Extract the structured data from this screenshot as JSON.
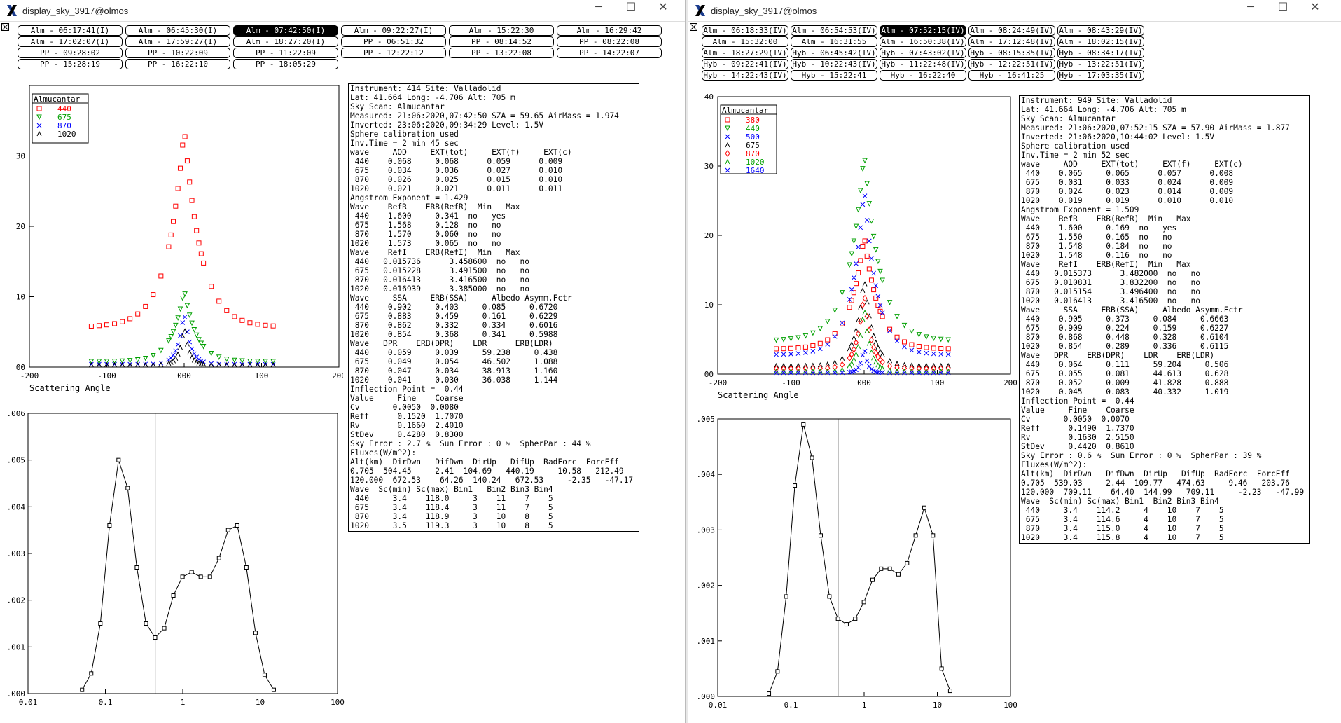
{
  "windows": [
    {
      "title": "display_sky_3917@olmos",
      "scans": [
        {
          "label": "Alm - 06:17:41(I)",
          "selected": false
        },
        {
          "label": "Alm - 06:45:30(I)",
          "selected": false
        },
        {
          "label": "Alm - 07:42:50(I)",
          "selected": true
        },
        {
          "label": "Alm - 09:22:27(I)",
          "selected": false
        },
        {
          "label": "Alm - 15:22:30",
          "selected": false
        },
        {
          "label": "Alm - 16:29:42",
          "selected": false
        },
        {
          "label": "Alm - 17:02:07(I)",
          "selected": false
        },
        {
          "label": "Alm - 17:59:27(I)",
          "selected": false
        },
        {
          "label": "Alm - 18:27:20(I)",
          "selected": false
        },
        {
          "label": "PP - 06:51:32",
          "selected": false
        },
        {
          "label": "PP - 08:14:52",
          "selected": false
        },
        {
          "label": "PP - 08:22:08",
          "selected": false
        },
        {
          "label": "PP - 09:28:02",
          "selected": false
        },
        {
          "label": "PP - 10:22:09",
          "selected": false
        },
        {
          "label": "PP - 11:22:09",
          "selected": false
        },
        {
          "label": "PP - 12:22:12",
          "selected": false
        },
        {
          "label": "PP - 13:22:08",
          "selected": false
        },
        {
          "label": "PP - 14:22:07",
          "selected": false
        },
        {
          "label": "PP - 15:28:19",
          "selected": false
        },
        {
          "label": "PP - 16:22:10",
          "selected": false
        },
        {
          "label": "PP - 18:05:29",
          "selected": false
        }
      ],
      "info": [
        "Instrument: 414 Site: Valladolid",
        "Lat: 41.664 Long: -4.706 Alt: 705 m",
        "Sky Scan: Almucantar",
        "Measured: 21:06:2020,07:42:50 SZA = 59.65 AirMass = 1.974",
        "Inverted: 23:06:2020,09:34:29 Level: 1.5V",
        "Sphere calibration used",
        "Inv.Time = 2 min 45 sec",
        "wave     AOD     EXT(tot)     EXT(f)     EXT(c)",
        " 440    0.068     0.068      0.059      0.009",
        " 675    0.034     0.036      0.027      0.010",
        " 870    0.026     0.025      0.015      0.010",
        "1020    0.021     0.021      0.011      0.011",
        "Angstrom Exponent = 1.429",
        "Wave    RefR    ERB(RefR)  Min   Max",
        " 440    1.600     0.341  no   yes",
        " 675    1.568     0.128  no   no",
        " 870    1.570     0.060  no   no",
        "1020    1.573     0.065  no   no",
        "Wave    RefI    ERB(RefI)  Min   Max",
        " 440   0.015736      3.458600  no   no",
        " 675   0.015228      3.491500  no   no",
        " 870   0.016413      3.416500  no   no",
        "1020   0.016939      3.385000  no   no",
        "Wave     SSA     ERB(SSA)     Albedo Asymm.Fctr",
        " 440    0.902     0.403     0.085     0.6720",
        " 675    0.883     0.459     0.161     0.6229",
        " 870    0.862     0.332     0.334     0.6016",
        "1020    0.854     0.368     0.341     0.5988",
        "Wave   DPR    ERB(DPR)    LDR      ERB(LDR)",
        " 440    0.059     0.039     59.238     0.438",
        " 675    0.049     0.054     46.502     1.088",
        " 870    0.047     0.034     38.913     1.160",
        "1020    0.041     0.030     36.038     1.144",
        "Inflection Point =  0.44",
        "Value     Fine    Coarse",
        "Cv       0.0050  0.0080",
        "Reff      0.1520  1.7070",
        "Rv        0.1660  2.4010",
        "StDev     0.4280  0.8300",
        "Sky Error : 2.7 %  Sun Error : 0 %  SpherPar : 44 %",
        "Fluxes(W/m^2):",
        "Alt(km)  DirDwn   DifDwn  DirUp   DifUp  RadForc  ForcEff",
        "0.705  504.45     2.41  104.69   440.19     10.58   212.49",
        "120.000  672.53    64.26  140.24   672.53     -2.35   -47.17",
        "Wave  Sc(min) Sc(max) Bin1   Bin2 Bin3 Bin4",
        " 440     3.4    118.0     3    11    7    5",
        " 675     3.4    118.4     3    11    7    5",
        " 870     3.4    118.9     3    10    8    5",
        "1020     3.5    119.3     3    10    8    5"
      ],
      "sky_chart": {
        "type": "scatter",
        "xlabel": "Scattering Angle",
        "xlim": [
          -200,
          200
        ],
        "ylim": [
          0,
          40
        ],
        "legend_title": "Almucantar",
        "legend": [
          {
            "name": "440",
            "color": "#ff0000",
            "marker": "square"
          },
          {
            "name": "675",
            "color": "#00a000",
            "marker": "triangle"
          },
          {
            "name": "870",
            "color": "#0000ff",
            "marker": "x"
          },
          {
            "name": "1020",
            "color": "#000000",
            "marker": "lambda"
          }
        ],
        "xticks": [
          "-200",
          "-100",
          "000",
          "100",
          "200"
        ],
        "yticks": [
          "00",
          "10",
          "20",
          "30"
        ]
      },
      "psd_chart": {
        "type": "line",
        "xticks": [
          "0.01",
          "0.1",
          "1",
          "10",
          "100"
        ],
        "yticks": [
          ".000",
          ".001",
          ".002",
          ".003",
          ".004",
          ".005",
          ".006"
        ],
        "ylim": [
          0,
          0.006
        ],
        "inflection": 0.44,
        "x": [
          0.05,
          0.0656,
          0.0861,
          0.113,
          0.148,
          0.194,
          0.255,
          0.335,
          0.439,
          0.576,
          0.756,
          0.992,
          1.302,
          1.708,
          2.241,
          2.94,
          3.859,
          5.06,
          6.64,
          8.72,
          11.44,
          15.0
        ],
        "y": [
          8e-05,
          0.00043,
          0.0015,
          0.0036,
          0.005,
          0.0044,
          0.0027,
          0.0015,
          0.0012,
          0.0014,
          0.0021,
          0.0025,
          0.0026,
          0.0025,
          0.0025,
          0.0029,
          0.0035,
          0.0036,
          0.0027,
          0.0013,
          0.0004,
          8e-05
        ]
      }
    },
    {
      "title": "display_sky_3917@olmos",
      "scans": [
        {
          "label": "Alm - 06:18:33(IV)",
          "selected": false
        },
        {
          "label": "Alm - 06:54:53(IV)",
          "selected": false
        },
        {
          "label": "Alm - 07:52:15(IV)",
          "selected": true
        },
        {
          "label": "Alm - 08:24:49(IV)",
          "selected": false
        },
        {
          "label": "Alm - 08:43:29(IV)",
          "selected": false
        },
        {
          "label": "Alm - 15:32:00",
          "selected": false
        },
        {
          "label": "Alm - 16:31:55",
          "selected": false
        },
        {
          "label": "Alm - 16:50:38(IV)",
          "selected": false
        },
        {
          "label": "Alm - 17:12:48(IV)",
          "selected": false
        },
        {
          "label": "Alm - 18:02:15(IV)",
          "selected": false
        },
        {
          "label": "Alm - 18:27:29(IV)",
          "selected": false
        },
        {
          "label": "Hyb - 06:45:42(IV)",
          "selected": false
        },
        {
          "label": "Hyb - 07:43:02(IV)",
          "selected": false
        },
        {
          "label": "Hyb - 08:15:35(IV)",
          "selected": false
        },
        {
          "label": "Hyb - 08:34:17(IV)",
          "selected": false
        },
        {
          "label": "Hyb - 09:22:41(IV)",
          "selected": false
        },
        {
          "label": "Hyb - 10:22:43(IV)",
          "selected": false
        },
        {
          "label": "Hyb - 11:22:48(IV)",
          "selected": false
        },
        {
          "label": "Hyb - 12:22:51(IV)",
          "selected": false
        },
        {
          "label": "Hyb - 13:22:51(IV)",
          "selected": false
        },
        {
          "label": "Hyb - 14:22:43(IV)",
          "selected": false
        },
        {
          "label": "Hyb - 15:22:41",
          "selected": false
        },
        {
          "label": "Hyb - 16:22:40",
          "selected": false
        },
        {
          "label": "Hyb - 16:41:25",
          "selected": false
        },
        {
          "label": "Hyb - 17:03:35(IV)",
          "selected": false
        }
      ],
      "info": [
        "Instrument: 949 Site: Valladolid",
        "Lat: 41.664 Long: -4.706 Alt: 705 m",
        "Sky Scan: Almucantar",
        "Measured: 21:06:2020,07:52:15 SZA = 57.90 AirMass = 1.877",
        "Inverted: 21:06:2020,10:44:02 Level: 1.5V",
        "Sphere calibration used",
        "Inv.Time = 2 min 52 sec",
        "wave     AOD     EXT(tot)     EXT(f)     EXT(c)",
        " 440    0.065     0.065      0.057      0.008",
        " 675    0.031     0.033      0.024      0.009",
        " 870    0.024     0.023      0.014      0.009",
        "1020    0.019     0.019      0.010      0.010",
        "Angstrom Exponent = 1.509",
        "Wave    RefR    ERB(RefR)  Min   Max",
        " 440    1.600     0.169  no   yes",
        " 675    1.550     0.165  no   no",
        " 870    1.548     0.184  no   no",
        "1020    1.548     0.116  no   no",
        "Wave    RefI    ERB(RefI)  Min   Max",
        " 440   0.015373      3.482000  no   no",
        " 675   0.010831      3.832200  no   no",
        " 870   0.015154      3.496400  no   no",
        "1020   0.016413      3.416500  no   no",
        "Wave     SSA     ERB(SSA)     Albedo Asymm.Fctr",
        " 440    0.905     0.373     0.084     0.6663",
        " 675    0.909     0.224     0.159     0.6227",
        " 870    0.868     0.448     0.328     0.6104",
        "1020    0.854     0.289     0.336     0.6115",
        "Wave   DPR    ERB(DPR)    LDR    ERB(LDR)",
        " 440    0.064     0.111     59.204     0.506",
        " 675    0.055     0.081     44.613     0.628",
        " 870    0.052     0.009     41.828     0.888",
        "1020    0.045     0.083     40.332     1.019",
        "Inflection Point =  0.44",
        "Value     Fine    Coarse",
        "Cv       0.0050  0.0070",
        "Reff      0.1490  1.7370",
        "Rv        0.1630  2.5150",
        "StDev     0.4420  0.8610",
        "Sky Error : 0.6 %  Sun Error : 0 %  SpherPar : 39 %",
        "Fluxes(W/m^2):",
        "Alt(km)  DirDwn   DifDwn  DirUp   DifUp  RadForc  ForcEff",
        "0.705  539.03     2.44  109.77   474.63     9.46   203.76",
        "120.000  709.11    64.40  144.99   709.11     -2.23   -47.99",
        "Wave  Sc(min) Sc(max) Bin1  Bin2 Bin3 Bin4",
        " 440     3.4    114.2     4    10    7    5",
        " 675     3.4    114.6     4    10    7    5",
        " 870     3.4    115.0     4    10    7    5",
        "1020     3.4    115.8     4    10    7    5"
      ],
      "sky_chart": {
        "type": "scatter",
        "xlabel": "Scattering Angle",
        "xlim": [
          -200,
          200
        ],
        "ylim": [
          0,
          40
        ],
        "legend_title": "Almucantar",
        "legend": [
          {
            "name": "380",
            "color": "#ff0000",
            "marker": "square"
          },
          {
            "name": "440",
            "color": "#00a000",
            "marker": "triangle"
          },
          {
            "name": "500",
            "color": "#0000ff",
            "marker": "x"
          },
          {
            "name": "675",
            "color": "#000000",
            "marker": "lambda"
          },
          {
            "name": "870",
            "color": "#ff0000",
            "marker": "diamond"
          },
          {
            "name": "1020",
            "color": "#00a000",
            "marker": "lambda"
          },
          {
            "name": "1640",
            "color": "#0000ff",
            "marker": "x"
          }
        ],
        "xticks": [
          "-200",
          "-100",
          "000",
          "100",
          "200"
        ],
        "yticks": [
          "00",
          "10",
          "20",
          "30",
          "40"
        ]
      },
      "psd_chart": {
        "type": "line",
        "xticks": [
          "0.01",
          "0.1",
          "1",
          "10",
          "100"
        ],
        "yticks": [
          ".000",
          ".001",
          ".002",
          ".003",
          ".004",
          ".005"
        ],
        "ylim": [
          0,
          0.005
        ],
        "inflection": 0.44,
        "x": [
          0.05,
          0.0656,
          0.0861,
          0.113,
          0.148,
          0.194,
          0.255,
          0.335,
          0.439,
          0.576,
          0.756,
          0.992,
          1.302,
          1.708,
          2.241,
          2.94,
          3.859,
          5.06,
          6.64,
          8.72,
          11.44,
          15.0
        ],
        "y": [
          5e-05,
          0.00045,
          0.0018,
          0.0038,
          0.0049,
          0.0043,
          0.0029,
          0.0018,
          0.0014,
          0.0013,
          0.0014,
          0.0017,
          0.0021,
          0.0023,
          0.0023,
          0.0022,
          0.0024,
          0.0029,
          0.0034,
          0.0029,
          0.0005,
          0.0001
        ]
      }
    }
  ],
  "chart_data": [
    {
      "type": "line",
      "x": [
        0.05,
        0.0656,
        0.0861,
        0.113,
        0.148,
        0.194,
        0.255,
        0.335,
        0.439,
        0.576,
        0.756,
        0.992,
        1.302,
        1.708,
        2.241,
        2.94,
        3.859,
        5.06,
        6.64,
        8.72,
        11.44,
        15.0
      ],
      "values": [
        8e-05,
        0.00043,
        0.0015,
        0.0036,
        0.005,
        0.0044,
        0.0027,
        0.0015,
        0.0012,
        0.0014,
        0.0021,
        0.0025,
        0.0026,
        0.0025,
        0.0025,
        0.0029,
        0.0035,
        0.0036,
        0.0027,
        0.0013,
        0.0004,
        8e-05
      ],
      "xscale": "log",
      "xlim": [
        0.01,
        100
      ],
      "ylim": [
        0,
        0.006
      ]
    },
    {
      "type": "line",
      "x": [
        0.05,
        0.0656,
        0.0861,
        0.113,
        0.148,
        0.194,
        0.255,
        0.335,
        0.439,
        0.576,
        0.756,
        0.992,
        1.302,
        1.708,
        2.241,
        2.94,
        3.859,
        5.06,
        6.64,
        8.72,
        11.44,
        15.0
      ],
      "values": [
        5e-05,
        0.00045,
        0.0018,
        0.0038,
        0.0049,
        0.0043,
        0.0029,
        0.0018,
        0.0014,
        0.0013,
        0.0014,
        0.0017,
        0.0021,
        0.0023,
        0.0023,
        0.0022,
        0.0024,
        0.0029,
        0.0034,
        0.0029,
        0.0005,
        0.0001
      ],
      "xscale": "log",
      "xlim": [
        0.01,
        100
      ],
      "ylim": [
        0,
        0.005
      ]
    }
  ]
}
